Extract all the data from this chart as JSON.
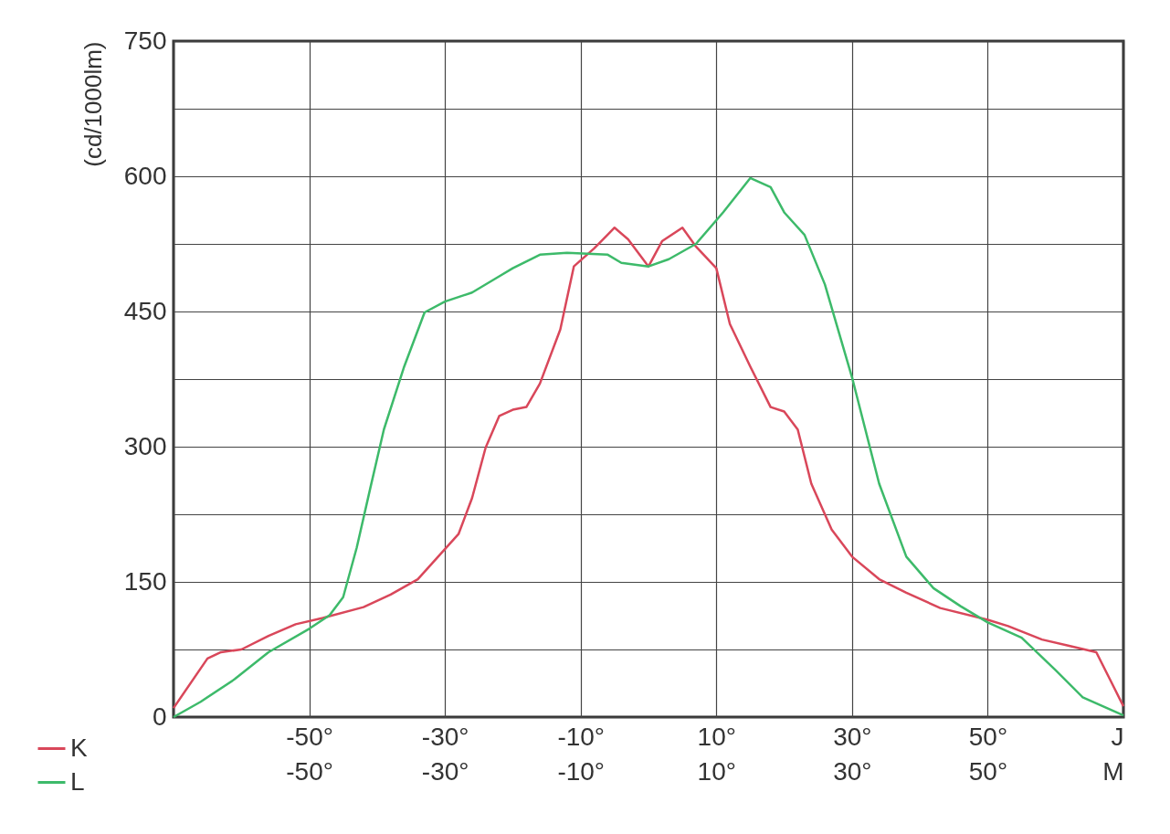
{
  "chart_data": {
    "type": "line",
    "ylabel": "(cd/1000lm)",
    "grid": true,
    "legend": "bottom left",
    "xlim": [
      -70,
      70
    ],
    "xticks": [
      {
        "value": -70,
        "label": null
      },
      {
        "value": -50,
        "label": "-50°"
      },
      {
        "value": -30,
        "label": "-30°"
      },
      {
        "value": -10,
        "label": "-10°"
      },
      {
        "value": 10,
        "label": "10°"
      },
      {
        "value": 30,
        "label": "30°"
      },
      {
        "value": 50,
        "label": "50°"
      },
      {
        "value": 70,
        "label": "J"
      }
    ],
    "x2lim": [
      -70,
      70
    ],
    "x2ticks": [
      {
        "value": -70,
        "label": null
      },
      {
        "value": -50,
        "label": "-50°"
      },
      {
        "value": -30,
        "label": "-30°"
      },
      {
        "value": -10,
        "label": "-10°"
      },
      {
        "value": 10,
        "label": "10°"
      },
      {
        "value": 30,
        "label": "30°"
      },
      {
        "value": 50,
        "label": "50°"
      },
      {
        "value": 70,
        "label": "M"
      }
    ],
    "ylim": [
      0,
      750
    ],
    "yticks": [
      0,
      {
        "value": 75,
        "label": null
      },
      150,
      {
        "value": 225,
        "label": null
      },
      300,
      {
        "value": 375,
        "label": null
      },
      450,
      {
        "value": 525,
        "label": null
      },
      600,
      {
        "value": 675,
        "label": null
      },
      750
    ],
    "series": [
      {
        "name": "K",
        "color": "#d9475a",
        "x": [
          -70,
          -65,
          -63,
          -60,
          -56,
          -52,
          -48,
          -42,
          -38,
          -34,
          -31,
          -28,
          -26,
          -24,
          -22,
          -20,
          -18,
          -16,
          -13,
          -11,
          -8,
          -5,
          -3,
          0,
          2,
          5,
          7,
          10,
          12,
          15,
          18,
          20,
          22,
          24,
          27,
          30,
          34,
          38,
          43,
          50,
          53,
          58,
          62,
          66,
          68,
          70
        ],
        "values": [
          10,
          65,
          72,
          75,
          90,
          103,
          110,
          122,
          136,
          153,
          178,
          203,
          243,
          299,
          334,
          341,
          344,
          370,
          430,
          500,
          520,
          543,
          530,
          500,
          528,
          543,
          522,
          498,
          436,
          389,
          344,
          339,
          319,
          259,
          208,
          178,
          153,
          138,
          121,
          108,
          101,
          86,
          79,
          72,
          42,
          12
        ]
      },
      {
        "name": "L",
        "color": "#3dba6a",
        "x": [
          -70,
          -66,
          -61,
          -56,
          -50,
          -47,
          -45,
          -43,
          -41,
          -39,
          -36,
          -33,
          -30,
          -26,
          -22,
          -20,
          -16,
          -12,
          -6,
          -4,
          0,
          3,
          7,
          11,
          15,
          18,
          20,
          23,
          26,
          30,
          34,
          38,
          42,
          46,
          50,
          55,
          60,
          64,
          70
        ],
        "values": [
          0,
          17,
          42,
          72,
          98,
          113,
          133,
          188,
          254,
          319,
          389,
          449,
          461,
          471,
          489,
          498,
          513,
          515,
          513,
          504,
          500,
          508,
          525,
          560,
          598,
          588,
          560,
          535,
          480,
          377,
          259,
          178,
          143,
          123,
          105,
          88,
          52,
          22,
          2
        ]
      }
    ]
  }
}
